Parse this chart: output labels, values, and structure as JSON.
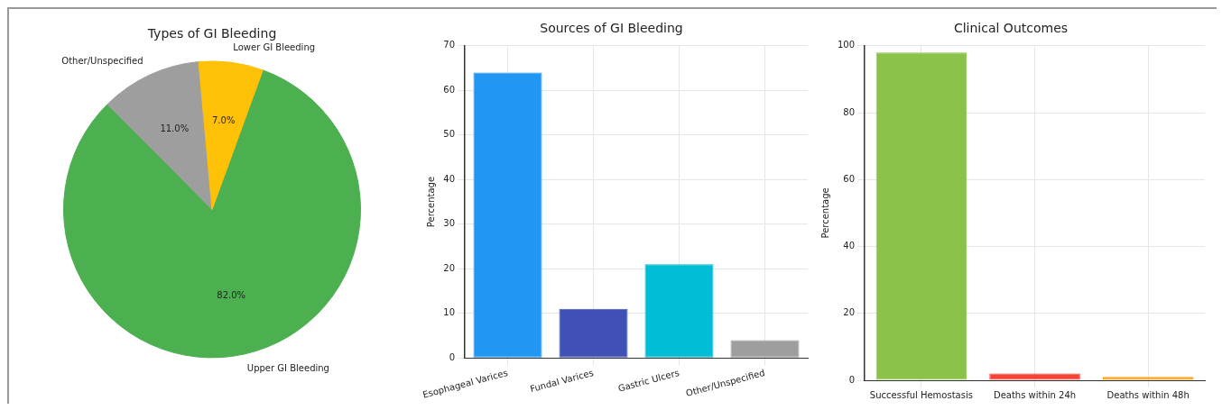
{
  "chart_data": [
    {
      "type": "pie",
      "title": "Types of GI Bleeding",
      "categories": [
        "Upper GI Bleeding",
        "Other/Unspecified",
        "Lower GI Bleeding"
      ],
      "values": [
        82,
        11,
        7
      ],
      "colors": [
        "#4caf50",
        "#9e9e9e",
        "#ffc107"
      ],
      "value_labels": [
        "82.0%",
        "11.0%",
        "7.0%"
      ],
      "legend": false
    },
    {
      "type": "bar",
      "title": "Sources of GI Bleeding",
      "ylabel": "Percentage",
      "categories": [
        "Esophageal Varices",
        "Fundal Varices",
        "Gastric Ulcers",
        "Other/Unspecified"
      ],
      "values": [
        64,
        11,
        21,
        4
      ],
      "colors": [
        "#2196f3",
        "#3f51b5",
        "#00bcd4",
        "#9e9e9e"
      ],
      "ylim": [
        0,
        70
      ],
      "yticks": [
        0,
        10,
        20,
        30,
        40,
        50,
        60,
        70
      ],
      "grid": true,
      "legend": false
    },
    {
      "type": "bar",
      "title": "Clinical Outcomes",
      "ylabel": "Percentage",
      "categories": [
        "Successful Hemostasis",
        "Deaths within 24h",
        "Deaths within 48h"
      ],
      "values": [
        98,
        2,
        1
      ],
      "colors": [
        "#8bc34a",
        "#f44336",
        "#ff9800"
      ],
      "ylim": [
        0,
        100
      ],
      "yticks": [
        0,
        20,
        40,
        60,
        80,
        100
      ],
      "grid": true,
      "legend": false
    }
  ]
}
